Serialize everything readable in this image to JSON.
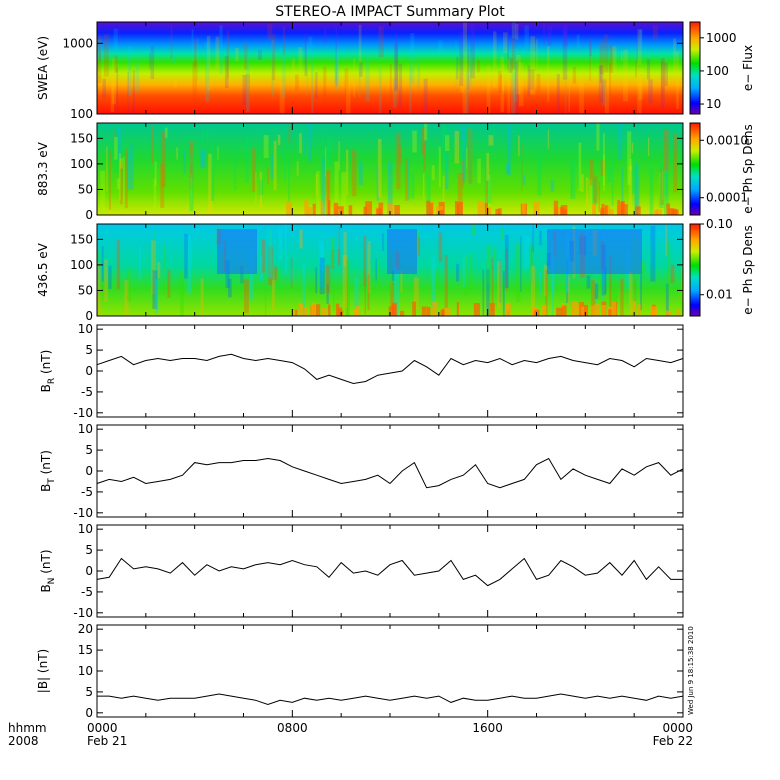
{
  "title": "STEREO-A IMPACT Summary Plot",
  "timestamp": "Wed Jun  9 18:15:38 2010",
  "colors": {
    "axis": "#000000",
    "line": "#000000",
    "background": "#ffffff"
  },
  "chart_data": [
    {
      "type": "heatmap",
      "ylabel": "SWEA (eV)",
      "yscale": "log",
      "ylim": [
        100,
        2000
      ],
      "yticks": [
        "100",
        "1000"
      ],
      "colorbar": {
        "label": "e− Flux",
        "scale": "log",
        "range": [
          5,
          3000
        ],
        "ticks": [
          "10",
          "100",
          "1000"
        ]
      }
    },
    {
      "type": "heatmap",
      "ylabel": "883.3 eV",
      "ylim": [
        0,
        180
      ],
      "yticks": [
        "0",
        "50",
        "100",
        "150"
      ],
      "colorbar": {
        "label": "e− Ph Sp Dens",
        "scale": "log",
        "range": [
          5e-05,
          0.002
        ],
        "ticks": [
          "0.0001",
          "0.0010"
        ]
      }
    },
    {
      "type": "heatmap",
      "ylabel": "436.5 eV",
      "ylim": [
        0,
        180
      ],
      "yticks": [
        "0",
        "50",
        "100",
        "150"
      ],
      "colorbar": {
        "label": "e− Ph Sp Dens",
        "scale": "log",
        "range": [
          0.005,
          0.1
        ],
        "ticks": [
          "0.01",
          "0.10"
        ]
      }
    },
    {
      "type": "line",
      "ylabel_main": "B",
      "ylabel_sub": "R",
      "ylabel_unit": " (nT)",
      "ylim": [
        -11,
        11
      ],
      "yticks": [
        "-10",
        "-5",
        "0",
        "5",
        "10"
      ],
      "x_hours": [
        0,
        0.5,
        1,
        1.5,
        2,
        2.5,
        3,
        3.5,
        4,
        4.5,
        5,
        5.5,
        6,
        6.5,
        7,
        7.5,
        8,
        8.5,
        9,
        9.5,
        10,
        10.5,
        11,
        11.5,
        12,
        12.5,
        13,
        13.5,
        14,
        14.5,
        15,
        15.5,
        16,
        16.5,
        17,
        17.5,
        18,
        18.5,
        19,
        19.5,
        20,
        20.5,
        21,
        21.5,
        22,
        22.5,
        23,
        23.5,
        24
      ],
      "values": [
        1.5,
        2.5,
        3.5,
        1.5,
        2.5,
        3,
        2.5,
        3,
        3,
        2.5,
        3.5,
        4,
        3,
        2.5,
        3,
        2.5,
        2,
        0.5,
        -2,
        -1,
        -2,
        -3,
        -2.5,
        -1,
        -0.5,
        0,
        2.5,
        1,
        -1,
        3,
        1.5,
        2.5,
        2,
        3,
        1.5,
        2.5,
        2,
        3,
        3.5,
        2.5,
        2,
        1.5,
        3,
        2.5,
        1,
        3,
        2.5,
        2,
        3
      ]
    },
    {
      "type": "line",
      "ylabel_main": "B",
      "ylabel_sub": "T",
      "ylabel_unit": " (nT)",
      "ylim": [
        -11,
        11
      ],
      "yticks": [
        "-10",
        "-5",
        "0",
        "5",
        "10"
      ],
      "x_hours": [
        0,
        0.5,
        1,
        1.5,
        2,
        2.5,
        3,
        3.5,
        4,
        4.5,
        5,
        5.5,
        6,
        6.5,
        7,
        7.5,
        8,
        8.5,
        9,
        9.5,
        10,
        10.5,
        11,
        11.5,
        12,
        12.5,
        13,
        13.5,
        14,
        14.5,
        15,
        15.5,
        16,
        16.5,
        17,
        17.5,
        18,
        18.5,
        19,
        19.5,
        20,
        20.5,
        21,
        21.5,
        22,
        22.5,
        23,
        23.5,
        24
      ],
      "values": [
        -3,
        -2,
        -2.5,
        -1.5,
        -3,
        -2.5,
        -2,
        -1,
        2,
        1.5,
        2,
        2,
        2.5,
        2.5,
        3,
        2.5,
        1,
        0,
        -1,
        -2,
        -3,
        -2.5,
        -2,
        -1,
        -3,
        0,
        2,
        -4,
        -3.5,
        -2,
        -1,
        1.5,
        -3,
        -4,
        -3,
        -2,
        1.5,
        3,
        -2,
        0.5,
        -1,
        -2,
        -3,
        0.5,
        -1,
        1,
        2,
        -1,
        0.5
      ]
    },
    {
      "type": "line",
      "ylabel_main": "B",
      "ylabel_sub": "N",
      "ylabel_unit": " (nT)",
      "ylim": [
        -11,
        11
      ],
      "yticks": [
        "-10",
        "-5",
        "0",
        "5",
        "10"
      ],
      "x_hours": [
        0,
        0.5,
        1,
        1.5,
        2,
        2.5,
        3,
        3.5,
        4,
        4.5,
        5,
        5.5,
        6,
        6.5,
        7,
        7.5,
        8,
        8.5,
        9,
        9.5,
        10,
        10.5,
        11,
        11.5,
        12,
        12.5,
        13,
        13.5,
        14,
        14.5,
        15,
        15.5,
        16,
        16.5,
        17,
        17.5,
        18,
        18.5,
        19,
        19.5,
        20,
        20.5,
        21,
        21.5,
        22,
        22.5,
        23,
        23.5,
        24
      ],
      "values": [
        -2,
        -1.5,
        3,
        0.5,
        1,
        0.5,
        -0.5,
        2,
        -1,
        1.5,
        0,
        1,
        0.5,
        1.5,
        2,
        1.5,
        2.5,
        1.5,
        1,
        -1.5,
        2,
        -0.5,
        0,
        -1,
        1.5,
        2.5,
        -1,
        -0.5,
        0,
        2.5,
        -2,
        -1,
        -3.5,
        -2,
        0.5,
        3,
        -2,
        -1,
        2.5,
        1,
        -1,
        -0.5,
        2,
        -1,
        2.5,
        -2,
        1,
        -2,
        -2
      ]
    },
    {
      "type": "line",
      "ylabel_main": "|B| (nT)",
      "ylim": [
        -1,
        21
      ],
      "yticks": [
        "0",
        "5",
        "10",
        "15",
        "20"
      ],
      "x_hours": [
        0,
        0.5,
        1,
        1.5,
        2,
        2.5,
        3,
        3.5,
        4,
        4.5,
        5,
        5.5,
        6,
        6.5,
        7,
        7.5,
        8,
        8.5,
        9,
        9.5,
        10,
        10.5,
        11,
        11.5,
        12,
        12.5,
        13,
        13.5,
        14,
        14.5,
        15,
        15.5,
        16,
        16.5,
        17,
        17.5,
        18,
        18.5,
        19,
        19.5,
        20,
        20.5,
        21,
        21.5,
        22,
        22.5,
        23,
        23.5,
        24
      ],
      "values": [
        4,
        4,
        3.5,
        4,
        3.5,
        3,
        3.5,
        3.5,
        3.5,
        4,
        4.5,
        4,
        3.5,
        3,
        2,
        3,
        2.5,
        3.5,
        3,
        3.5,
        3,
        3.5,
        4,
        3.5,
        3,
        3.5,
        4,
        3.5,
        4,
        2.5,
        3.5,
        3,
        3,
        3.5,
        4,
        3.5,
        3.5,
        4,
        4.5,
        4,
        3.5,
        4,
        3.5,
        4,
        3.5,
        3,
        4,
        3.5,
        4
      ]
    }
  ],
  "xaxis": {
    "row1_label": "hhmm",
    "row2_label": "2008",
    "ticks": [
      {
        "hours": 0,
        "label": "0000",
        "date": "Feb 21"
      },
      {
        "hours": 8,
        "label": "0800",
        "date": ""
      },
      {
        "hours": 16,
        "label": "1600",
        "date": ""
      },
      {
        "hours": 24,
        "label": "0000",
        "date": "Feb 22"
      }
    ],
    "range_hours": [
      0,
      24
    ]
  }
}
